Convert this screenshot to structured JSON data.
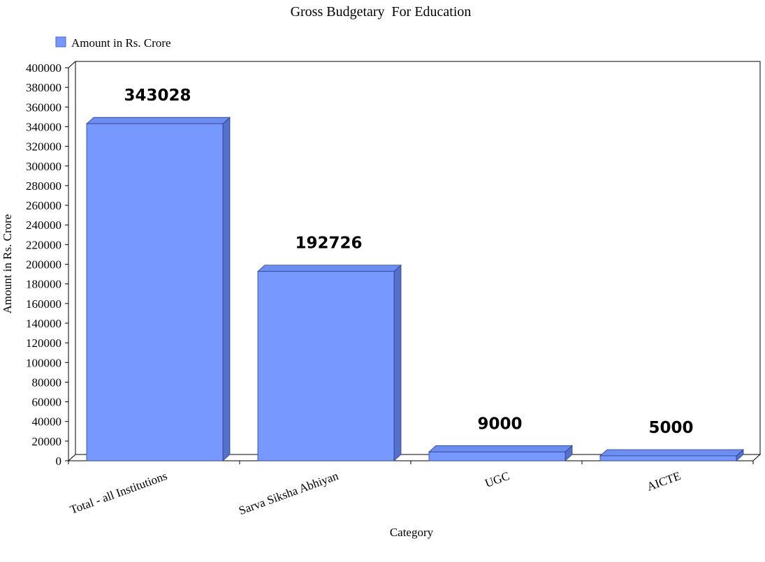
{
  "chart_data": {
    "type": "bar",
    "title": "Gross Budgetary  For Education",
    "xlabel": "Category",
    "ylabel": "Amount in Rs. Crore",
    "ylim": [
      0,
      400000
    ],
    "ytick_step": 20000,
    "legend_position": "top-left",
    "grid": false,
    "categories": [
      "Total - all Institutions",
      "Sarva Siksha Abhiyan",
      "UGC",
      "AICTE"
    ],
    "series": [
      {
        "name": "Amount in Rs. Crore",
        "values": [
          343028,
          192726,
          9000,
          5000
        ],
        "data_labels": [
          "343028",
          "192726",
          "9000",
          "5000"
        ],
        "color": "#7799ff",
        "side_color": "#5570c8",
        "top_color": "#6d8ef0"
      }
    ]
  }
}
